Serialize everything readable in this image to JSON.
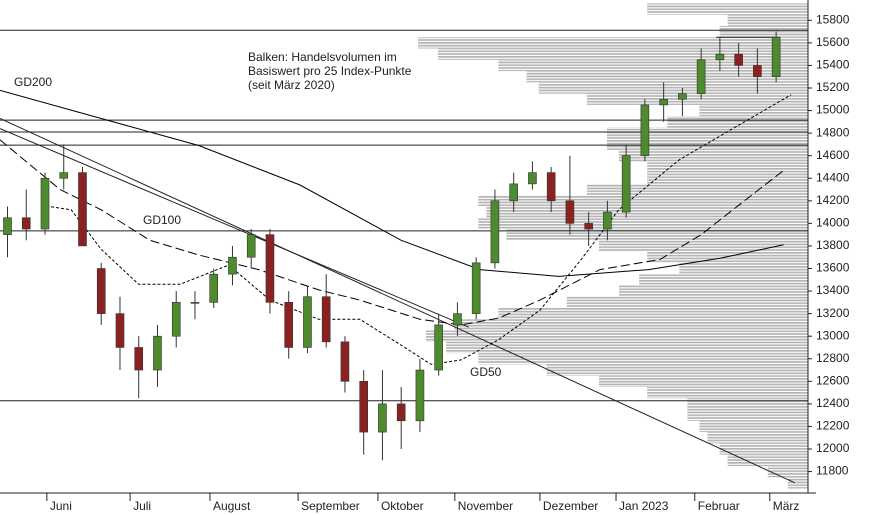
{
  "chart_data": {
    "type": "candlestick",
    "annotation": [
      "Balken: Handelsvolumen im",
      "Basiswert pro 25 Index-Punkte",
      "(seit März 2020)"
    ],
    "xlim": [
      0,
      215.5
    ],
    "ylim": [
      11610,
      15980
    ],
    "yticks": [
      11800,
      12000,
      12200,
      12400,
      12600,
      12800,
      13000,
      13200,
      13400,
      13600,
      13800,
      14000,
      14200,
      14400,
      14600,
      14800,
      15000,
      15200,
      15400,
      15600,
      15800
    ],
    "xticks": [
      {
        "value": 12.5,
        "label": "Juni"
      },
      {
        "value": 34.7,
        "label": "Juli"
      },
      {
        "value": 56,
        "label": "August"
      },
      {
        "value": 79.5,
        "label": "September"
      },
      {
        "value": 100.8,
        "label": "Oktober"
      },
      {
        "value": 121.3,
        "label": "November"
      },
      {
        "value": 144,
        "label": "Dezember"
      },
      {
        "value": 164.3,
        "label": "Jan 2023"
      },
      {
        "value": 185.3,
        "label": "Februar"
      },
      {
        "value": 205.3,
        "label": "März"
      }
    ],
    "up_color": "#4e8a2e",
    "down_color": "#8b2222",
    "x": [
      2,
      7,
      12,
      17,
      22,
      27,
      32,
      37,
      42,
      47,
      52,
      57,
      62,
      67,
      72,
      77,
      82,
      87,
      92,
      97,
      102,
      107,
      112,
      117,
      122,
      127,
      132,
      137,
      142,
      147,
      152,
      157,
      162,
      167,
      172,
      177,
      182,
      187,
      192,
      197,
      202,
      207
    ],
    "open": [
      13900,
      14050,
      13950,
      14400,
      14450,
      13600,
      13200,
      12900,
      12700,
      13000,
      13300,
      13300,
      13550,
      13700,
      13900,
      13300,
      12900,
      13350,
      12950,
      12600,
      12150,
      12400,
      12250,
      12700,
      13100,
      13200,
      13650,
      14200,
      14350,
      14450,
      14200,
      14000,
      13950,
      14100,
      14600,
      15050,
      15100,
      15150,
      15450,
      15500,
      15400,
      15300
    ],
    "high": [
      14150,
      14300,
      14450,
      14700,
      14500,
      13650,
      13350,
      13000,
      13100,
      13400,
      13400,
      13600,
      13800,
      13950,
      13950,
      13400,
      13450,
      13550,
      13000,
      12700,
      12700,
      12550,
      12800,
      13200,
      13300,
      13700,
      14300,
      14450,
      14550,
      14500,
      14600,
      14100,
      14200,
      14700,
      15100,
      15250,
      15200,
      15550,
      15650,
      15600,
      15550,
      15700
    ],
    "low": [
      13700,
      13850,
      13900,
      14300,
      13800,
      13100,
      12700,
      12450,
      12550,
      12900,
      13150,
      13250,
      13450,
      13600,
      13200,
      12800,
      12850,
      12900,
      12500,
      11950,
      11900,
      12000,
      12150,
      12650,
      13000,
      13150,
      13600,
      14100,
      14300,
      14100,
      13900,
      13800,
      13850,
      14050,
      14550,
      14900,
      14950,
      15100,
      15350,
      15300,
      15150,
      15250
    ],
    "close": [
      14050,
      13950,
      14400,
      14450,
      13800,
      13200,
      12900,
      12700,
      13000,
      13300,
      13300,
      13550,
      13700,
      13900,
      13300,
      12900,
      13350,
      12950,
      12600,
      12150,
      12400,
      12250,
      12700,
      13100,
      13200,
      13650,
      14200,
      14350,
      14450,
      14200,
      14000,
      13950,
      14100,
      14600,
      15050,
      15100,
      15150,
      15450,
      15500,
      15400,
      15300,
      15650
    ],
    "series": [
      {
        "name": "GD200",
        "color": "#000000",
        "dash": "solid",
        "x": [
          0,
          27,
          53,
          80,
          107,
          128,
          149,
          173,
          192,
          209
        ],
        "values": [
          15180,
          14930,
          14690,
          14340,
          13850,
          13590,
          13530,
          13590,
          13690,
          13810
        ]
      },
      {
        "name": "GD100",
        "color": "#000000",
        "dash": "long",
        "x": [
          0,
          16,
          27,
          40,
          53,
          69,
          85,
          96,
          112,
          123,
          133,
          144,
          160,
          176,
          187,
          197,
          209
        ],
        "values": [
          14740,
          14300,
          14120,
          13850,
          13720,
          13590,
          13410,
          13320,
          13150,
          13100,
          13160,
          13320,
          13590,
          13680,
          13900,
          14160,
          14470
        ]
      },
      {
        "name": "GD50",
        "color": "#000000",
        "dash": "short",
        "x": [
          11,
          19,
          27,
          37,
          48,
          61,
          72,
          85,
          96,
          107,
          115,
          123,
          133,
          144,
          155,
          165,
          181,
          197,
          211
        ],
        "values": [
          14160,
          14120,
          13770,
          13460,
          13460,
          13630,
          13320,
          13150,
          13150,
          12920,
          12750,
          12790,
          12970,
          13230,
          13680,
          14120,
          14560,
          14870,
          15140
        ]
      }
    ],
    "levels": [
      15712,
      14915,
      14810,
      14694,
      13933,
      12428
    ],
    "resistance": {
      "value": 15650,
      "x": [
        191,
        208
      ]
    },
    "trendlines": [
      {
        "x": [
          0,
          212
        ],
        "values": [
          14930,
          11700
        ]
      },
      {
        "x": [
          0,
          125
        ],
        "values": [
          14840,
          13080
        ]
      }
    ],
    "volume_profile": {
      "color": "#b4b4b4",
      "prices": [
        11700,
        11800,
        11900,
        12000,
        12100,
        12200,
        12300,
        12400,
        12500,
        12600,
        12700,
        12800,
        12900,
        13000,
        13100,
        13200,
        13300,
        13400,
        13500,
        13600,
        13700,
        13800,
        13900,
        14000,
        14100,
        14200,
        14300,
        14400,
        14500,
        14600,
        14700,
        14800,
        14900,
        15000,
        15100,
        15200,
        15300,
        15400,
        15500,
        15600,
        15700,
        15800,
        15900
      ],
      "values": [
        5,
        10,
        20,
        22,
        25,
        27,
        30,
        30,
        40,
        52,
        65,
        82,
        90,
        95,
        88,
        77,
        60,
        47,
        42,
        32,
        40,
        52,
        75,
        82,
        80,
        82,
        55,
        40,
        40,
        47,
        50,
        50,
        35,
        27,
        55,
        67,
        70,
        77,
        92,
        97,
        22,
        20,
        40
      ]
    }
  }
}
